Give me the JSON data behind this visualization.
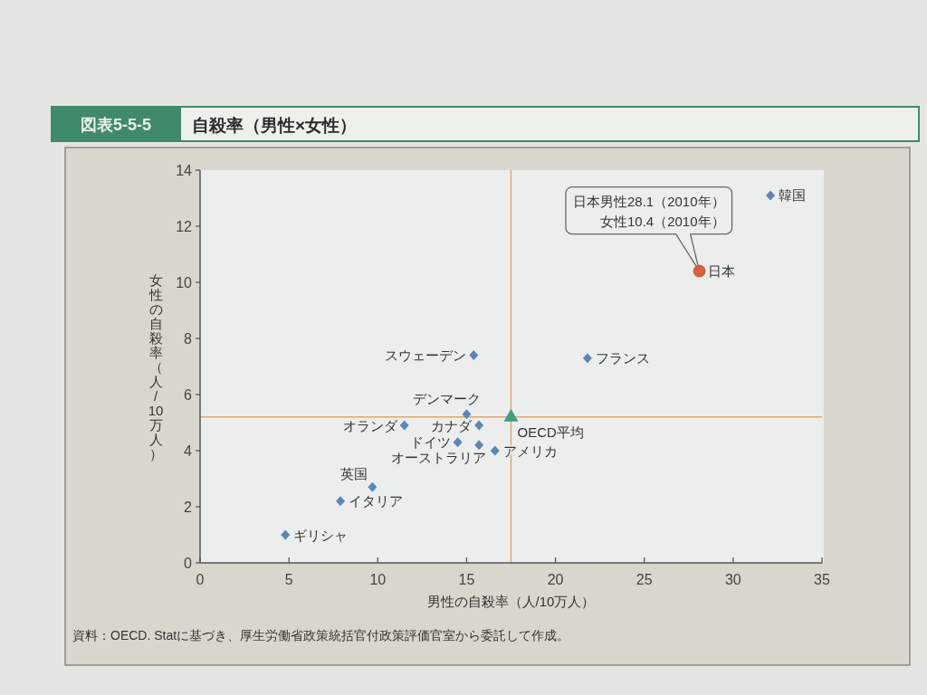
{
  "chart_data": {
    "type": "scatter",
    "subtitle": "図表5-5-5",
    "title": "自殺率（男性×女性）",
    "xlabel": "男性の自殺率（人/10万人）",
    "ylabel": "女性の自殺率（人/10万人）",
    "xlim": [
      0,
      35
    ],
    "ylim": [
      0,
      14
    ],
    "xticks": [
      0,
      5,
      10,
      15,
      20,
      25,
      30,
      35
    ],
    "yticks": [
      0,
      2,
      4,
      6,
      8,
      10,
      12,
      14
    ],
    "marker": "diamond",
    "series": [
      {
        "name": "韓国",
        "color": "#5b86b5",
        "x": [
          32.1
        ],
        "values": [
          13.1
        ]
      },
      {
        "name": "日本",
        "color": "#d8603c",
        "marker": "circle",
        "x": [
          28.1
        ],
        "values": [
          10.4
        ]
      },
      {
        "name": "フランス",
        "color": "#5b86b5",
        "x": [
          21.8
        ],
        "values": [
          7.3
        ]
      },
      {
        "name": "スウェーデン",
        "color": "#5b86b5",
        "x": [
          15.4
        ],
        "values": [
          7.4
        ]
      },
      {
        "name": "デンマーク",
        "color": "#5b86b5",
        "x": [
          15.0
        ],
        "values": [
          5.3
        ]
      },
      {
        "name": "オランダ",
        "color": "#5b86b5",
        "x": [
          11.5
        ],
        "values": [
          4.9
        ]
      },
      {
        "name": "カナダ",
        "color": "#5b86b5",
        "x": [
          15.7
        ],
        "values": [
          4.9
        ]
      },
      {
        "name": "ドイツ",
        "color": "#5b86b5",
        "x": [
          14.5
        ],
        "values": [
          4.3
        ]
      },
      {
        "name": "オーストラリア",
        "color": "#5b86b5",
        "x": [
          15.7
        ],
        "values": [
          4.2
        ]
      },
      {
        "name": "アメリカ",
        "color": "#5b86b5",
        "x": [
          16.6
        ],
        "values": [
          4.0
        ]
      },
      {
        "name": "英国",
        "color": "#5b86b5",
        "x": [
          9.7
        ],
        "values": [
          2.7
        ]
      },
      {
        "name": "イタリア",
        "color": "#5b86b5",
        "x": [
          7.9
        ],
        "values": [
          2.2
        ]
      },
      {
        "name": "ギリシャ",
        "color": "#5b86b5",
        "x": [
          4.8
        ],
        "values": [
          1.0
        ]
      },
      {
        "name": "OECD平均",
        "color": "#3d9f80",
        "marker": "triangle",
        "x": [
          17.5
        ],
        "values": [
          5.2
        ]
      }
    ],
    "ref_lines": [
      {
        "axis": "x",
        "value": 17.5,
        "color": "#e3a66a"
      },
      {
        "axis": "y",
        "value": 5.2,
        "color": "#e3a66a"
      }
    ],
    "annotations": [
      {
        "text": "日本男性28.1（2010年）女性10.4（2010年）",
        "x": 28.1,
        "y": 10.4
      },
      "資料：OECD. Statに基づき、厚生労働省政策統括官付政策評価官室から委託して作成。"
    ]
  }
}
